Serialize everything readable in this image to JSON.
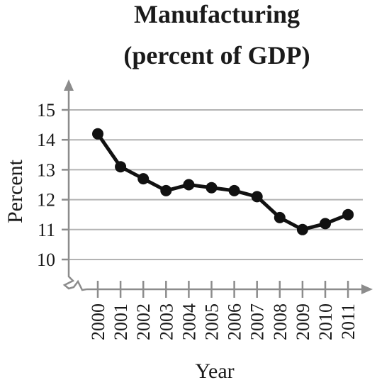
{
  "chart_data": {
    "type": "line",
    "title_lines": [
      "Manufacturing",
      "(percent of GDP)"
    ],
    "xlabel": "Year",
    "ylabel": "Percent",
    "categories": [
      "2000",
      "2001",
      "2002",
      "2003",
      "2004",
      "2005",
      "2006",
      "2007",
      "2008",
      "2009",
      "2010",
      "2011"
    ],
    "series": [
      {
        "values": [
          14.2,
          13.1,
          12.7,
          12.3,
          12.5,
          12.4,
          12.3,
          12.1,
          11.4,
          11.0,
          11.2,
          11.5
        ]
      }
    ],
    "yticks": [
      "10",
      "11",
      "12",
      "13",
      "14",
      "15"
    ],
    "ylim": [
      10,
      15
    ],
    "y_axis_break": true,
    "grid": true,
    "colors": {
      "line": "#111111",
      "grid": "#b3b3b3",
      "axis": "#8c8c8c"
    }
  }
}
